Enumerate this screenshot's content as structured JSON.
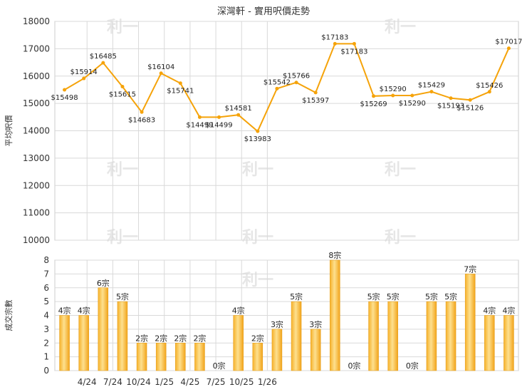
{
  "chart_data": [
    {
      "type": "line",
      "title": "深灣軒 - 實用呎價走勢",
      "ylabel": "平均呎價",
      "ylim": [
        10000,
        18000
      ],
      "yticks": [
        10000,
        11000,
        12000,
        13000,
        14000,
        15000,
        16000,
        17000,
        18000
      ],
      "x_ticks": [
        "4/24",
        "7/24",
        "10/24",
        "1/25",
        "4/25",
        "7/25",
        "10/25",
        "1/26"
      ],
      "grid": true,
      "color": "#f5a30a",
      "values": [
        15498,
        15914,
        16485,
        15615,
        14683,
        16104,
        15741,
        14499,
        14499,
        14581,
        13983,
        15542,
        15766,
        15397,
        17183,
        17183,
        15269,
        15290,
        15290,
        15429,
        15193,
        15126,
        15426,
        17017
      ],
      "labels": [
        "$15498",
        "$15914",
        "$16485",
        "$15615",
        "$14683",
        "$16104",
        "$15741",
        "$14499",
        "$14499",
        "$14581",
        "$13983",
        "$15542",
        "$15766",
        "$15397",
        "$17183",
        "$17183",
        "$15269",
        "$15290",
        "$15290",
        "$15429",
        "$15193",
        "$15126",
        "$15426",
        "$17017"
      ]
    },
    {
      "type": "bar",
      "ylabel": "成交宗數",
      "ylim": [
        0,
        8
      ],
      "yticks": [
        0,
        1,
        2,
        3,
        4,
        5,
        6,
        7,
        8
      ],
      "x_ticks": [
        "4/24",
        "7/24",
        "10/24",
        "1/25",
        "4/25",
        "7/25",
        "10/25",
        "1/26"
      ],
      "grid": true,
      "color": "#f5a30a",
      "values": [
        4,
        4,
        6,
        5,
        2,
        2,
        2,
        2,
        0,
        4,
        2,
        3,
        5,
        3,
        8,
        0,
        5,
        5,
        0,
        5,
        5,
        7,
        4,
        4
      ],
      "labels": [
        "4宗",
        "4宗",
        "6宗",
        "5宗",
        "2宗",
        "2宗",
        "2宗",
        "2宗",
        "0宗",
        "4宗",
        "2宗",
        "3宗",
        "5宗",
        "3宗",
        "8宗",
        "0宗",
        "5宗",
        "5宗",
        "0宗",
        "5宗",
        "5宗",
        "7宗",
        "4宗",
        "4宗"
      ]
    }
  ],
  "watermark": "利一"
}
